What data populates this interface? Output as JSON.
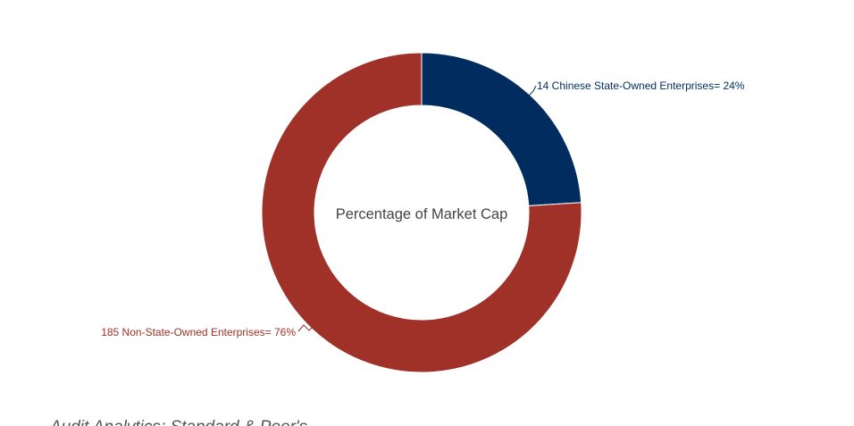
{
  "chart_data": {
    "type": "pie",
    "subtype": "donut",
    "center_label": "Percentage of Market Cap",
    "slices": [
      {
        "label": "14 Chinese State-Owned Enterprises= 24%",
        "value": 24,
        "color": "#002c5f"
      },
      {
        "label": "185 Non-State-Owned Enterprises= 76%",
        "value": 76,
        "color": "#a03128"
      }
    ],
    "legend": "none"
  },
  "footer": {
    "source": "Audit Analytics; Standard & Poor's"
  }
}
